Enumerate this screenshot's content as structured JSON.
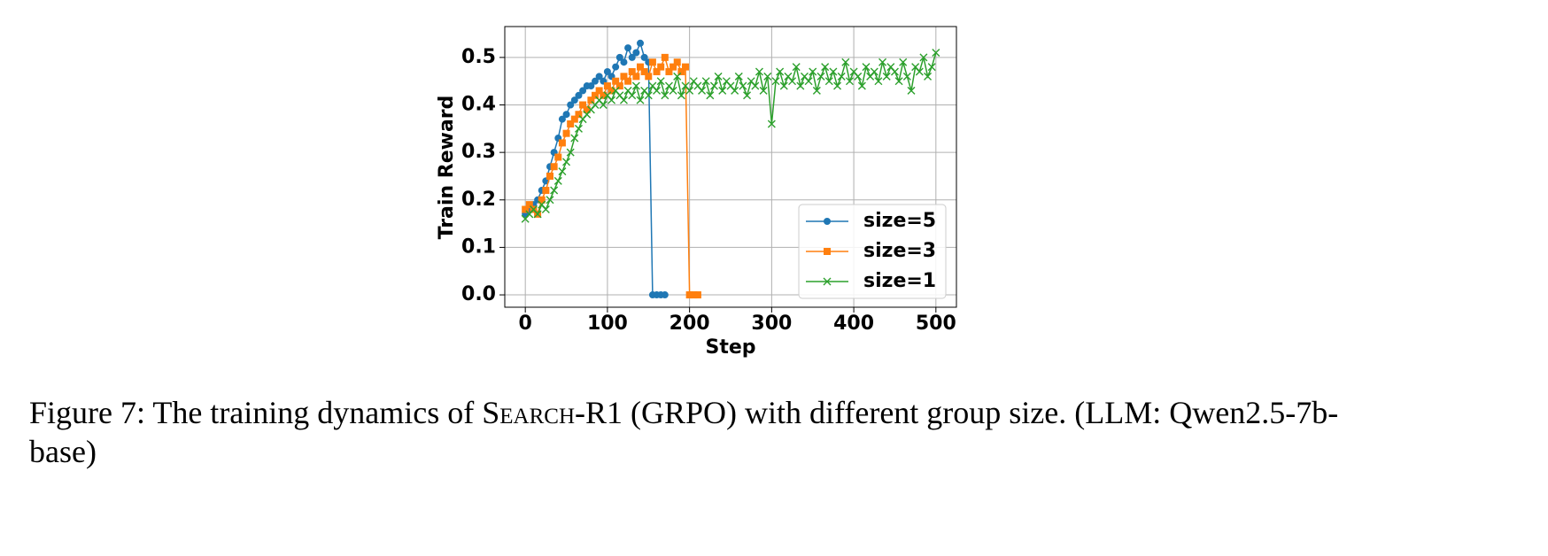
{
  "chart_data": {
    "type": "line",
    "xlabel": "Step",
    "ylabel": "Train Reward",
    "xlim": [
      -25,
      525
    ],
    "ylim": [
      -0.026,
      0.565
    ],
    "xticks": [
      0,
      100,
      200,
      300,
      400,
      500
    ],
    "yticks": [
      {
        "value": 0,
        "label": "0.0"
      },
      0.1,
      0.2,
      0.3,
      0.4,
      0.5
    ],
    "grid": true,
    "legend_position": "lower right",
    "series": [
      {
        "name": "size=5",
        "color": "#1f77b4",
        "marker": "circle",
        "x": [
          0,
          5,
          10,
          15,
          20,
          25,
          30,
          35,
          40,
          45,
          50,
          55,
          60,
          65,
          70,
          75,
          80,
          85,
          90,
          95,
          100,
          105,
          110,
          115,
          120,
          125,
          130,
          135,
          140,
          145,
          150,
          155,
          160,
          165,
          170
        ],
        "values": [
          0.17,
          0.18,
          0.19,
          0.2,
          0.22,
          0.24,
          0.27,
          0.3,
          0.33,
          0.37,
          0.38,
          0.4,
          0.41,
          0.42,
          0.43,
          0.44,
          0.44,
          0.45,
          0.46,
          0.45,
          0.47,
          0.46,
          0.48,
          0.5,
          0.49,
          0.52,
          0.5,
          0.51,
          0.53,
          0.5,
          0.49,
          0,
          0,
          0,
          0
        ]
      },
      {
        "name": "size=3",
        "color": "#ff7f0e",
        "marker": "square",
        "x": [
          0,
          5,
          10,
          15,
          20,
          25,
          30,
          35,
          40,
          45,
          50,
          55,
          60,
          65,
          70,
          75,
          80,
          85,
          90,
          95,
          100,
          105,
          110,
          115,
          120,
          125,
          130,
          135,
          140,
          145,
          150,
          155,
          160,
          165,
          170,
          175,
          180,
          185,
          190,
          195,
          200,
          205,
          210
        ],
        "values": [
          0.18,
          0.19,
          0.18,
          0.17,
          0.2,
          0.22,
          0.25,
          0.27,
          0.29,
          0.32,
          0.34,
          0.36,
          0.37,
          0.38,
          0.4,
          0.39,
          0.41,
          0.42,
          0.43,
          0.42,
          0.44,
          0.43,
          0.45,
          0.44,
          0.46,
          0.45,
          0.47,
          0.46,
          0.48,
          0.47,
          0.46,
          0.49,
          0.47,
          0.48,
          0.5,
          0.47,
          0.48,
          0.49,
          0.47,
          0.48,
          0,
          0,
          0
        ]
      },
      {
        "name": "size=1",
        "color": "#2ca02c",
        "marker": "x",
        "x": [
          0,
          5,
          10,
          15,
          20,
          25,
          30,
          35,
          40,
          45,
          50,
          55,
          60,
          65,
          70,
          75,
          80,
          85,
          90,
          95,
          100,
          105,
          110,
          115,
          120,
          125,
          130,
          135,
          140,
          145,
          150,
          155,
          160,
          165,
          170,
          175,
          180,
          185,
          190,
          195,
          200,
          205,
          210,
          215,
          220,
          225,
          230,
          235,
          240,
          245,
          250,
          255,
          260,
          265,
          270,
          275,
          280,
          285,
          290,
          295,
          300,
          305,
          310,
          315,
          320,
          325,
          330,
          335,
          340,
          345,
          350,
          355,
          360,
          365,
          370,
          375,
          380,
          385,
          390,
          395,
          400,
          405,
          410,
          415,
          420,
          425,
          430,
          435,
          440,
          445,
          450,
          455,
          460,
          465,
          470,
          475,
          480,
          485,
          490,
          495,
          500
        ],
        "values": [
          0.16,
          0.17,
          0.18,
          0.17,
          0.19,
          0.18,
          0.2,
          0.22,
          0.24,
          0.26,
          0.28,
          0.3,
          0.33,
          0.35,
          0.37,
          0.38,
          0.39,
          0.4,
          0.41,
          0.4,
          0.42,
          0.41,
          0.43,
          0.42,
          0.41,
          0.43,
          0.42,
          0.44,
          0.41,
          0.43,
          0.42,
          0.44,
          0.43,
          0.45,
          0.42,
          0.44,
          0.43,
          0.46,
          0.42,
          0.44,
          0.43,
          0.45,
          0.44,
          0.43,
          0.45,
          0.42,
          0.44,
          0.46,
          0.43,
          0.45,
          0.44,
          0.43,
          0.46,
          0.44,
          0.42,
          0.45,
          0.44,
          0.47,
          0.43,
          0.46,
          0.36,
          0.45,
          0.47,
          0.44,
          0.46,
          0.45,
          0.48,
          0.44,
          0.46,
          0.45,
          0.47,
          0.43,
          0.46,
          0.48,
          0.45,
          0.47,
          0.44,
          0.46,
          0.49,
          0.45,
          0.47,
          0.46,
          0.44,
          0.48,
          0.46,
          0.47,
          0.45,
          0.49,
          0.46,
          0.48,
          0.47,
          0.45,
          0.49,
          0.46,
          0.43,
          0.48,
          0.47,
          0.5,
          0.46,
          0.48,
          0.51
        ]
      }
    ]
  },
  "caption": {
    "before": "Figure 7: The training dynamics of ",
    "smallcaps": "Search-R1",
    "after": " (GRPO) with different group size. (LLM: Qwen2.5-7b-base)"
  }
}
